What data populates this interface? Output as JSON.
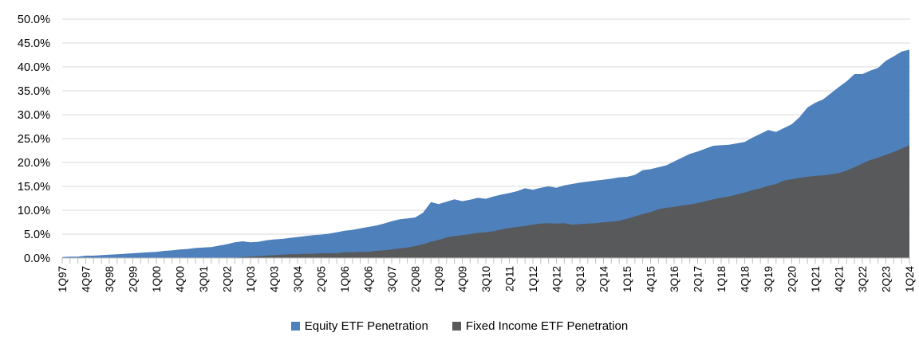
{
  "chart_data": {
    "type": "area",
    "title": "",
    "xlabel": "",
    "ylabel": "",
    "ylim": [
      0,
      50
    ],
    "y_step": 5,
    "grid": "horizontal",
    "legend_position": "bottom-center",
    "overlap_mode": "overlapping",
    "y_tick_labels": [
      "0.0%",
      "5.0%",
      "10.0%",
      "15.0%",
      "20.0%",
      "25.0%",
      "30.0%",
      "35.0%",
      "40.0%",
      "45.0%",
      "50.0%"
    ],
    "x_tick_labels_shown": [
      "1Q97",
      "4Q97",
      "3Q98",
      "2Q99",
      "1Q00",
      "4Q00",
      "3Q01",
      "2Q02",
      "1Q03",
      "4Q03",
      "3Q04",
      "2Q05",
      "1Q06",
      "4Q06",
      "3Q07",
      "2Q08",
      "1Q09",
      "4Q09",
      "3Q10",
      "2Q11",
      "1Q12",
      "4Q12",
      "3Q13",
      "2Q14",
      "1Q15",
      "4Q15",
      "3Q16",
      "2Q17",
      "1Q18",
      "4Q18",
      "3Q19",
      "2Q20",
      "1Q21",
      "4Q21",
      "3Q22",
      "2Q23",
      "1Q24"
    ],
    "x_label_every_n": 3,
    "categories": [
      "1Q97",
      "2Q97",
      "3Q97",
      "4Q97",
      "1Q98",
      "2Q98",
      "3Q98",
      "4Q98",
      "1Q99",
      "2Q99",
      "3Q99",
      "4Q99",
      "1Q00",
      "2Q00",
      "3Q00",
      "4Q00",
      "1Q01",
      "2Q01",
      "3Q01",
      "4Q01",
      "1Q02",
      "2Q02",
      "3Q02",
      "4Q02",
      "1Q03",
      "2Q03",
      "3Q03",
      "4Q03",
      "1Q04",
      "2Q04",
      "3Q04",
      "4Q04",
      "1Q05",
      "2Q05",
      "3Q05",
      "4Q05",
      "1Q06",
      "2Q06",
      "3Q06",
      "4Q06",
      "1Q07",
      "2Q07",
      "3Q07",
      "4Q07",
      "1Q08",
      "2Q08",
      "3Q08",
      "4Q08",
      "1Q09",
      "2Q09",
      "3Q09",
      "4Q09",
      "1Q10",
      "2Q10",
      "3Q10",
      "4Q10",
      "1Q11",
      "2Q11",
      "3Q11",
      "4Q11",
      "1Q12",
      "2Q12",
      "3Q12",
      "4Q12",
      "1Q13",
      "2Q13",
      "3Q13",
      "4Q13",
      "1Q14",
      "2Q14",
      "3Q14",
      "4Q14",
      "1Q15",
      "2Q15",
      "3Q15",
      "4Q15",
      "1Q16",
      "2Q16",
      "3Q16",
      "4Q16",
      "1Q17",
      "2Q17",
      "3Q17",
      "4Q17",
      "1Q18",
      "2Q18",
      "3Q18",
      "4Q18",
      "1Q19",
      "2Q19",
      "3Q19",
      "4Q19",
      "1Q20",
      "2Q20",
      "3Q20",
      "4Q20",
      "1Q21",
      "2Q21",
      "3Q21",
      "4Q21",
      "1Q22",
      "2Q22",
      "3Q22",
      "4Q22",
      "1Q23",
      "2Q23",
      "3Q23",
      "4Q23",
      "1Q24"
    ],
    "series": [
      {
        "name": "Equity ETF Penetration",
        "color": "#4E80BC",
        "values": [
          0.2,
          0.3,
          0.3,
          0.5,
          0.5,
          0.6,
          0.7,
          0.8,
          0.9,
          1.0,
          1.1,
          1.2,
          1.3,
          1.5,
          1.6,
          1.8,
          1.9,
          2.1,
          2.2,
          2.3,
          2.6,
          2.9,
          3.3,
          3.5,
          3.3,
          3.4,
          3.7,
          3.9,
          4.0,
          4.2,
          4.4,
          4.6,
          4.8,
          4.9,
          5.1,
          5.4,
          5.7,
          5.9,
          6.2,
          6.5,
          6.8,
          7.2,
          7.7,
          8.1,
          8.3,
          8.5,
          9.5,
          11.7,
          11.3,
          11.8,
          12.3,
          11.9,
          12.2,
          12.6,
          12.4,
          12.9,
          13.3,
          13.6,
          14.0,
          14.6,
          14.3,
          14.7,
          15.0,
          14.7,
          15.2,
          15.5,
          15.8,
          16.0,
          16.2,
          16.4,
          16.6,
          16.9,
          17.0,
          17.4,
          18.4,
          18.6,
          19.0,
          19.4,
          20.2,
          21.0,
          21.8,
          22.3,
          22.9,
          23.5,
          23.6,
          23.7,
          24.0,
          24.3,
          25.2,
          26.0,
          26.8,
          26.4,
          27.2,
          28.0,
          29.5,
          31.5,
          32.5,
          33.2,
          34.5,
          35.8,
          37.0,
          38.5,
          38.5,
          39.2,
          39.8,
          41.3,
          42.2,
          43.2,
          43.6
        ]
      },
      {
        "name": "Fixed Income ETF Penetration",
        "color": "#58595B",
        "values": [
          0.0,
          0.0,
          0.0,
          0.0,
          0.0,
          0.0,
          0.0,
          0.0,
          0.0,
          0.0,
          0.0,
          0.0,
          0.0,
          0.0,
          0.0,
          0.0,
          0.0,
          0.0,
          0.0,
          0.0,
          0.0,
          0.0,
          0.1,
          0.2,
          0.3,
          0.4,
          0.5,
          0.6,
          0.7,
          0.8,
          0.8,
          0.9,
          0.9,
          1.0,
          1.0,
          1.0,
          1.2,
          1.2,
          1.3,
          1.3,
          1.5,
          1.6,
          1.8,
          2.0,
          2.2,
          2.5,
          2.9,
          3.4,
          3.8,
          4.3,
          4.6,
          4.8,
          5.0,
          5.3,
          5.4,
          5.6,
          6.0,
          6.3,
          6.5,
          6.7,
          7.0,
          7.2,
          7.3,
          7.2,
          7.3,
          7.0,
          7.1,
          7.2,
          7.3,
          7.5,
          7.6,
          7.8,
          8.2,
          8.7,
          9.2,
          9.6,
          10.2,
          10.5,
          10.7,
          11.0,
          11.2,
          11.5,
          11.9,
          12.3,
          12.6,
          12.9,
          13.3,
          13.7,
          14.2,
          14.6,
          15.1,
          15.5,
          16.2,
          16.5,
          16.8,
          17.0,
          17.2,
          17.3,
          17.5,
          17.8,
          18.3,
          19.0,
          19.8,
          20.5,
          21.0,
          21.6,
          22.2,
          22.9,
          23.6
        ]
      }
    ],
    "colors": {
      "gridline": "#D9D9D9",
      "axis": "#BFBFBF",
      "text": "#000000",
      "background": "#FFFFFF"
    }
  }
}
